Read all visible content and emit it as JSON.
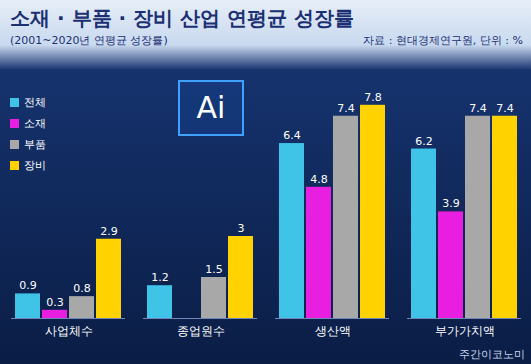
{
  "chart_data": {
    "type": "bar",
    "title": "소재 · 부품 · 장비 산업 연평균 성장률",
    "subtitle": "(2001~2020년 연평균 성장률)",
    "source": "자료 : 현대경제연구원, 단위 : %",
    "annotations": [
      "Ai",
      "주간이코노미"
    ],
    "categories": [
      "사업체수",
      "종업원수",
      "생산액",
      "부가가치액"
    ],
    "series": [
      {
        "name": "전체",
        "color": "#3fc4e8",
        "values": [
          0.9,
          1.2,
          6.4,
          6.2
        ]
      },
      {
        "name": "소재",
        "color": "#e81ee0",
        "values": [
          0.3,
          null,
          4.8,
          3.9
        ]
      },
      {
        "name": "부품",
        "color": "#a8a8a8",
        "values": [
          0.8,
          1.5,
          7.4,
          7.4
        ]
      },
      {
        "name": "장비",
        "color": "#ffd200",
        "values": [
          2.9,
          3,
          7.8,
          7.4
        ]
      }
    ],
    "ylim": [
      0,
      9
    ],
    "data_labels": true,
    "tick_labels": "x",
    "legend": "top-left"
  }
}
